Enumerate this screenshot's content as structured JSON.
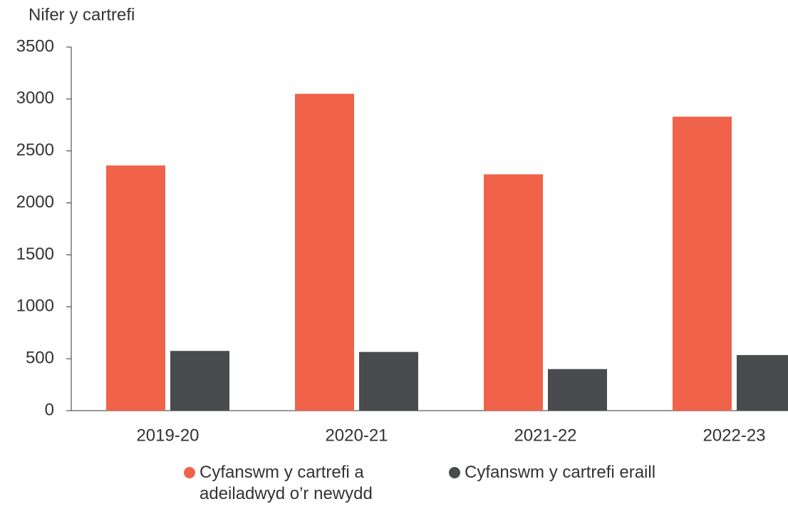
{
  "chart_data": {
    "type": "bar",
    "y_label": "Nifer y cartrefi",
    "categories": [
      "2019-20",
      "2020-21",
      "2021-22",
      "2022-23"
    ],
    "series": [
      {
        "name": "Cyfanswm y cartrefi a adeiladwyd o’r newydd",
        "color": "#f0624a",
        "values": [
          2360,
          3050,
          2275,
          2830
        ]
      },
      {
        "name": "Cyfanswm y cartrefi eraill",
        "color": "#494b4f",
        "values": [
          575,
          565,
          400,
          535
        ]
      }
    ],
    "ylim": [
      0,
      3500
    ],
    "yticks": [
      0,
      500,
      1000,
      1500,
      2000,
      2500,
      3000,
      3500
    ]
  }
}
